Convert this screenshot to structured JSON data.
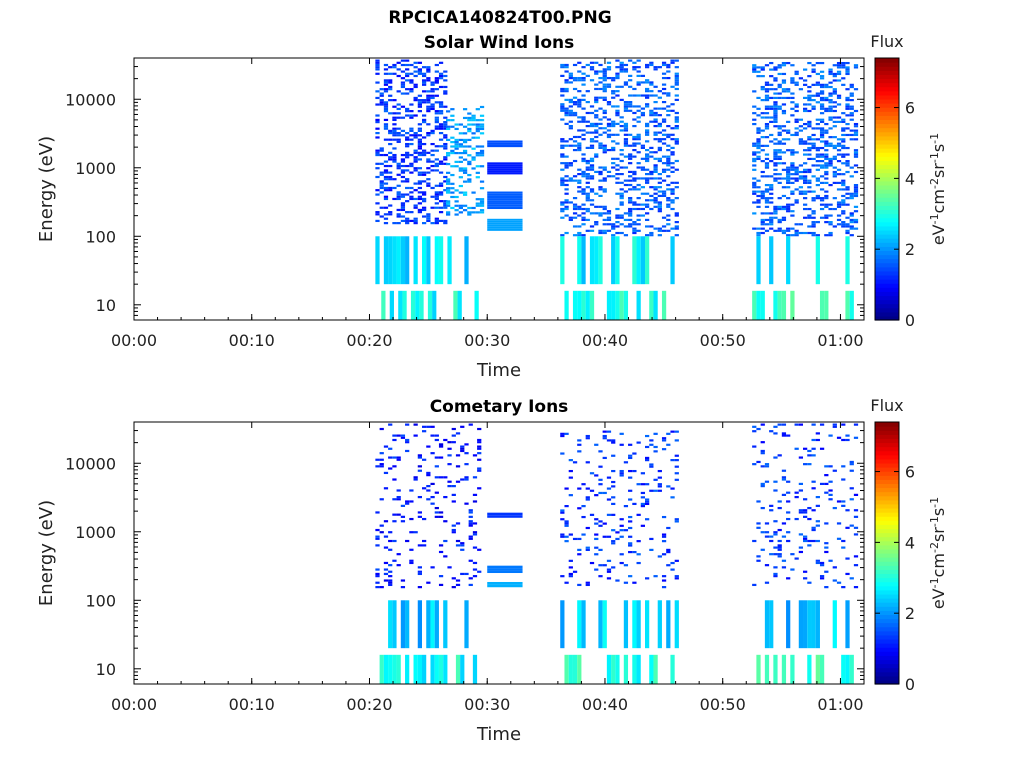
{
  "figure_title": "RPCICA140824T00.PNG",
  "chart_data": [
    {
      "type": "heatmap",
      "title": "Solar Wind Ions",
      "xlabel": "Time",
      "ylabel": "Energy (eV)",
      "x_unit": "minutes since 00:00",
      "xlim": [
        0,
        62
      ],
      "x_ticks": [
        0,
        10,
        20,
        30,
        40,
        50,
        60
      ],
      "x_tick_labels": [
        "00:00",
        "00:10",
        "00:20",
        "00:30",
        "00:40",
        "00:50",
        "01:00"
      ],
      "y_scale": "log",
      "ylim": [
        6,
        40000
      ],
      "y_ticks": [
        10,
        100,
        1000,
        10000
      ],
      "y_tick_labels": [
        "10",
        "100",
        "1000",
        "10000"
      ],
      "colorbar": {
        "title": "Flux",
        "label": "eV-1cm-2sr-1s-1",
        "range": [
          0,
          7.4
        ],
        "ticks": [
          0,
          2,
          4,
          6
        ],
        "tick_labels": [
          "0",
          "2",
          "4",
          "6"
        ],
        "colormap": "jet"
      },
      "data_blocks": [
        {
          "t_start": 20.5,
          "t_end": 26.5,
          "e_min": 150,
          "e_max": 38000,
          "flux": 1.3
        },
        {
          "t_start": 26.5,
          "t_end": 29.5,
          "e_min": 200,
          "e_max": 8000,
          "flux": 2.1
        },
        {
          "t_start": 30.0,
          "t_end": 33.0,
          "e_min": 2000,
          "e_max": 2500,
          "flux": 1.5
        },
        {
          "t_start": 30.0,
          "t_end": 33.0,
          "e_min": 800,
          "e_max": 1200,
          "flux": 1.1
        },
        {
          "t_start": 30.0,
          "t_end": 33.0,
          "e_min": 250,
          "e_max": 450,
          "flux": 1.6
        },
        {
          "t_start": 30.0,
          "t_end": 33.0,
          "e_min": 120,
          "e_max": 180,
          "flux": 2.1
        },
        {
          "t_start": 36.2,
          "t_end": 46.0,
          "e_min": 100,
          "e_max": 38000,
          "flux": 1.6
        },
        {
          "t_start": 52.5,
          "t_end": 61.5,
          "e_min": 100,
          "e_max": 35000,
          "flux": 1.6
        },
        {
          "t_start": 20.5,
          "t_end": 29.5,
          "e_min": 20,
          "e_max": 100,
          "flux": 2.6
        },
        {
          "t_start": 36.2,
          "t_end": 46.0,
          "e_min": 20,
          "e_max": 100,
          "flux": 2.7
        },
        {
          "t_start": 52.5,
          "t_end": 61.5,
          "e_min": 20,
          "e_max": 100,
          "flux": 2.6
        },
        {
          "t_start": 21.0,
          "t_end": 29.5,
          "e_min": 6,
          "e_max": 16,
          "flux": 2.9
        },
        {
          "t_start": 36.2,
          "t_end": 46.0,
          "e_min": 6,
          "e_max": 16,
          "flux": 3.0
        },
        {
          "t_start": 52.5,
          "t_end": 61.5,
          "e_min": 6,
          "e_max": 16,
          "flux": 3.1
        }
      ]
    },
    {
      "type": "heatmap",
      "title": "Cometary Ions",
      "xlabel": "Time",
      "ylabel": "Energy (eV)",
      "x_unit": "minutes since 00:00",
      "xlim": [
        0,
        62
      ],
      "x_ticks": [
        0,
        10,
        20,
        30,
        40,
        50,
        60
      ],
      "x_tick_labels": [
        "00:00",
        "00:10",
        "00:20",
        "00:30",
        "00:40",
        "00:50",
        "01:00"
      ],
      "y_scale": "log",
      "ylim": [
        6,
        40000
      ],
      "y_ticks": [
        10,
        100,
        1000,
        10000
      ],
      "y_tick_labels": [
        "10",
        "100",
        "1000",
        "10000"
      ],
      "colorbar": {
        "title": "Flux",
        "label": "eV-1cm-2sr-1s-1",
        "range": [
          0,
          7.4
        ],
        "ticks": [
          0,
          2,
          4,
          6
        ],
        "tick_labels": [
          "0",
          "2",
          "4",
          "6"
        ],
        "colormap": "jet"
      },
      "data_blocks": [
        {
          "t_start": 20.5,
          "t_end": 29.5,
          "e_min": 150,
          "e_max": 38000,
          "flux": 1.1
        },
        {
          "t_start": 30.0,
          "t_end": 33.0,
          "e_min": 1600,
          "e_max": 1900,
          "flux": 1.3
        },
        {
          "t_start": 30.0,
          "t_end": 33.0,
          "e_min": 250,
          "e_max": 320,
          "flux": 1.8
        },
        {
          "t_start": 30.0,
          "t_end": 33.0,
          "e_min": 155,
          "e_max": 185,
          "flux": 2.2
        },
        {
          "t_start": 36.2,
          "t_end": 46.0,
          "e_min": 150,
          "e_max": 30000,
          "flux": 1.3
        },
        {
          "t_start": 52.5,
          "t_end": 61.5,
          "e_min": 150,
          "e_max": 38000,
          "flux": 1.3
        },
        {
          "t_start": 20.5,
          "t_end": 29.5,
          "e_min": 20,
          "e_max": 100,
          "flux": 2.4
        },
        {
          "t_start": 36.2,
          "t_end": 46.0,
          "e_min": 20,
          "e_max": 100,
          "flux": 2.4
        },
        {
          "t_start": 52.5,
          "t_end": 61.5,
          "e_min": 20,
          "e_max": 100,
          "flux": 2.4
        },
        {
          "t_start": 20.5,
          "t_end": 29.5,
          "e_min": 6,
          "e_max": 16,
          "flux": 2.9
        },
        {
          "t_start": 36.2,
          "t_end": 46.0,
          "e_min": 6,
          "e_max": 16,
          "flux": 3.0
        },
        {
          "t_start": 52.5,
          "t_end": 61.5,
          "e_min": 6,
          "e_max": 16,
          "flux": 3.1
        }
      ]
    }
  ]
}
